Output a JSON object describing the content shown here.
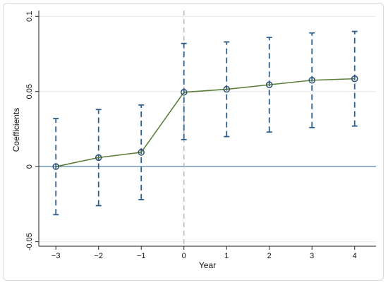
{
  "chart_data": {
    "type": "line",
    "title": "",
    "xlabel": "Year",
    "ylabel": "Coefficients",
    "x": [
      -3,
      -2,
      -1,
      0,
      1,
      2,
      3,
      4
    ],
    "x_tick_labels": [
      "−3",
      "−2",
      "−1",
      "0",
      "1",
      "2",
      "3",
      "4"
    ],
    "y_ticks": [
      -0.05,
      0,
      0.05,
      0.1
    ],
    "y_tick_labels": [
      "-0.05",
      "0",
      "0.05",
      "0.1"
    ],
    "xlim": [
      -3.4,
      4.5
    ],
    "ylim": [
      -0.053,
      0.102
    ],
    "grid": "horizontal",
    "series": [
      {
        "values": [
          0.0,
          0.006,
          0.0095,
          0.0495,
          0.0515,
          0.0545,
          0.0575,
          0.0585
        ],
        "ci_lower": [
          -0.032,
          -0.026,
          -0.022,
          0.018,
          0.02,
          0.023,
          0.026,
          0.027
        ],
        "ci_upper": [
          0.032,
          0.038,
          0.041,
          0.082,
          0.083,
          0.086,
          0.089,
          0.09
        ]
      }
    ],
    "reference_lines": {
      "y": 0,
      "x": 0
    },
    "colors": {
      "line": "#5b7f3a",
      "ci": "#2f5f8a",
      "marker": "#2b4f72",
      "zero_line": "#5a84ad",
      "vline": "#bbbbbb",
      "grid": "#e6e6e6"
    }
  }
}
